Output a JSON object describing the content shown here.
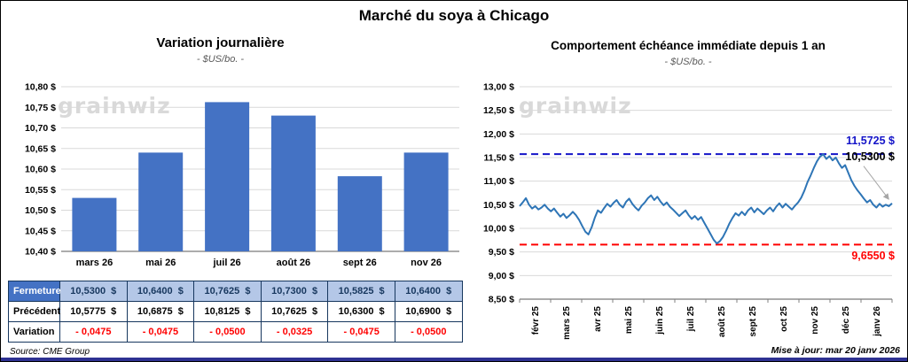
{
  "page": {
    "title": "Marché du soya à Chicago",
    "source": "Source: CME Group",
    "updated": "Mise à jour: mar 20 janv 2026"
  },
  "watermark": "grainwiz",
  "colors": {
    "bar": "#4472C4",
    "line": "#2E75B6",
    "high_line": "#1414C8",
    "low_line": "#FF0000",
    "table_header_bg": "#4472C4",
    "table_row_bg": "#B4C7E7",
    "table_border": "#17375E",
    "bottom_bar": "#2E3192",
    "grid": "#D9D9D9",
    "axis": "#595959"
  },
  "chart_data": [
    {
      "type": "bar",
      "title": "Variation journalière",
      "subtitle": "- $US/bo. -",
      "categories": [
        "mars 26",
        "mai 26",
        "juil 26",
        "août 26",
        "sept 26",
        "nov 26"
      ],
      "values": [
        10.53,
        10.64,
        10.7625,
        10.73,
        10.5825,
        10.64
      ],
      "ylim": [
        10.4,
        10.8
      ],
      "ytick_labels": [
        "10,80 $",
        "10,75 $",
        "10,70 $",
        "10,65 $",
        "10,60 $",
        "10,55 $",
        "10,50 $",
        "10,45 $",
        "10,40 $"
      ],
      "grid": true,
      "legend": "none"
    },
    {
      "type": "line",
      "title": "Comportement échéance immédiate depuis 1 an",
      "subtitle": "- $US/bo. -",
      "x_labels": [
        "févr 25",
        "mars 25",
        "avr 25",
        "mai 25",
        "juin 25",
        "juil 25",
        "août 25",
        "sept 25",
        "oct 25",
        "nov 25",
        "déc 25",
        "janv 26"
      ],
      "ylim": [
        8.5,
        13.0
      ],
      "ytick_labels": [
        "13,00 $",
        "12,50 $",
        "12,00 $",
        "11,50 $",
        "11,00 $",
        "10,50 $",
        "10,00 $",
        "9,50 $",
        "9,00 $",
        "8,50 $"
      ],
      "high_line": {
        "value": 11.5725,
        "label": "11,5725 $"
      },
      "low_line": {
        "value": 9.655,
        "label": "9,6550 $"
      },
      "last_value": 10.53,
      "last_label": "10,5300 $",
      "grid": true,
      "legend": "none",
      "values": [
        10.47,
        10.55,
        10.64,
        10.5,
        10.42,
        10.47,
        10.4,
        10.44,
        10.5,
        10.42,
        10.36,
        10.42,
        10.33,
        10.25,
        10.31,
        10.22,
        10.28,
        10.35,
        10.28,
        10.18,
        10.05,
        9.93,
        9.87,
        10.02,
        10.22,
        10.38,
        10.33,
        10.43,
        10.52,
        10.46,
        10.54,
        10.6,
        10.5,
        10.44,
        10.56,
        10.63,
        10.52,
        10.44,
        10.38,
        10.48,
        10.55,
        10.64,
        10.7,
        10.6,
        10.67,
        10.57,
        10.49,
        10.55,
        10.46,
        10.4,
        10.33,
        10.26,
        10.32,
        10.38,
        10.28,
        10.2,
        10.26,
        10.18,
        10.24,
        10.12,
        10.0,
        9.88,
        9.76,
        9.68,
        9.73,
        9.82,
        9.95,
        10.1,
        10.22,
        10.32,
        10.27,
        10.35,
        10.28,
        10.38,
        10.44,
        10.34,
        10.42,
        10.36,
        10.3,
        10.38,
        10.44,
        10.36,
        10.46,
        10.53,
        10.44,
        10.52,
        10.46,
        10.4,
        10.48,
        10.55,
        10.65,
        10.8,
        10.98,
        11.12,
        11.28,
        11.42,
        11.52,
        11.57,
        11.47,
        11.53,
        11.44,
        11.5,
        11.38,
        11.28,
        11.34,
        11.18,
        11.02,
        10.9,
        10.8,
        10.72,
        10.63,
        10.55,
        10.6,
        10.5,
        10.44,
        10.52,
        10.46,
        10.5,
        10.47,
        10.53
      ]
    }
  ],
  "table": {
    "rows": [
      {
        "label": "Fermeture",
        "values": [
          "10,5300  $",
          "10,6400  $",
          "10,7625  $",
          "10,7300  $",
          "10,5825  $",
          "10,6400  $"
        ]
      },
      {
        "label": "Précédent",
        "values": [
          "10,5775  $",
          "10,6875  $",
          "10,8125  $",
          "10,7625  $",
          "10,6300  $",
          "10,6900  $"
        ]
      },
      {
        "label": "Variation",
        "values": [
          "- 0,0475",
          "- 0,0475",
          "- 0,0500",
          "- 0,0325",
          "- 0,0475",
          "- 0,0500"
        ]
      }
    ]
  }
}
